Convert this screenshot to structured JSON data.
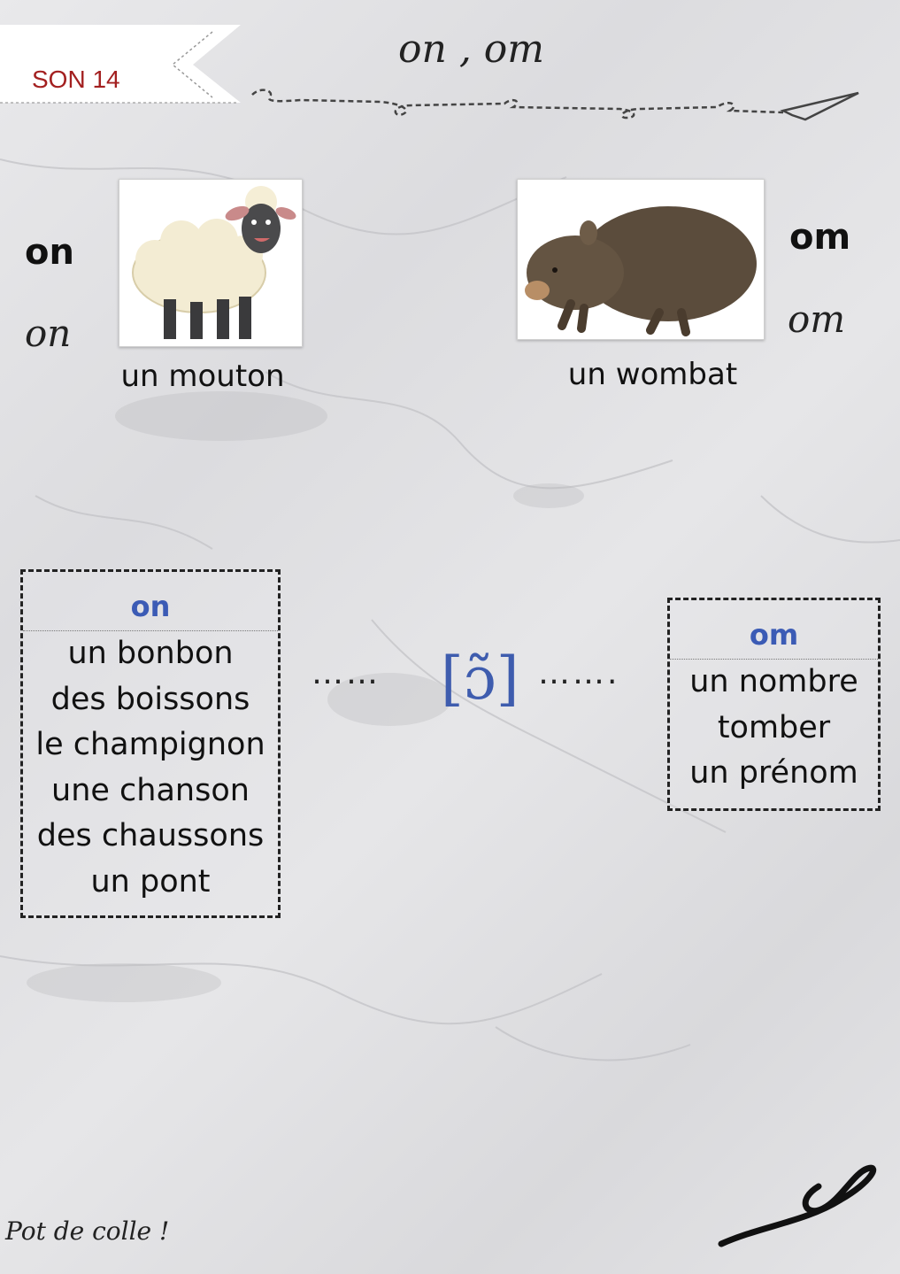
{
  "header": {
    "banner_label": "SON 14",
    "title": "on , om"
  },
  "left_card": {
    "print_label": "on",
    "cursive_label": "on",
    "image_icon": "sheep-illustration",
    "caption": "un mouton"
  },
  "right_card": {
    "print_label": "om",
    "cursive_label": "om",
    "image_icon": "wombat-illustration",
    "caption": "un wombat"
  },
  "phoneme": {
    "symbol": "[ɔ̃]",
    "left_dots": "……",
    "right_dots": "……."
  },
  "on_box": {
    "heading": "on",
    "words": [
      "un bonbon",
      "des boissons",
      "le champignon",
      "une chanson",
      "des chaussons",
      "un pont"
    ]
  },
  "om_box": {
    "heading": "om",
    "words": [
      "un nombre",
      "tomber",
      "un prénom"
    ]
  },
  "footer": {
    "credit": "Pot de colle !"
  },
  "colors": {
    "banner_text": "#a32020",
    "accent_blue": "#3b5bb5"
  }
}
